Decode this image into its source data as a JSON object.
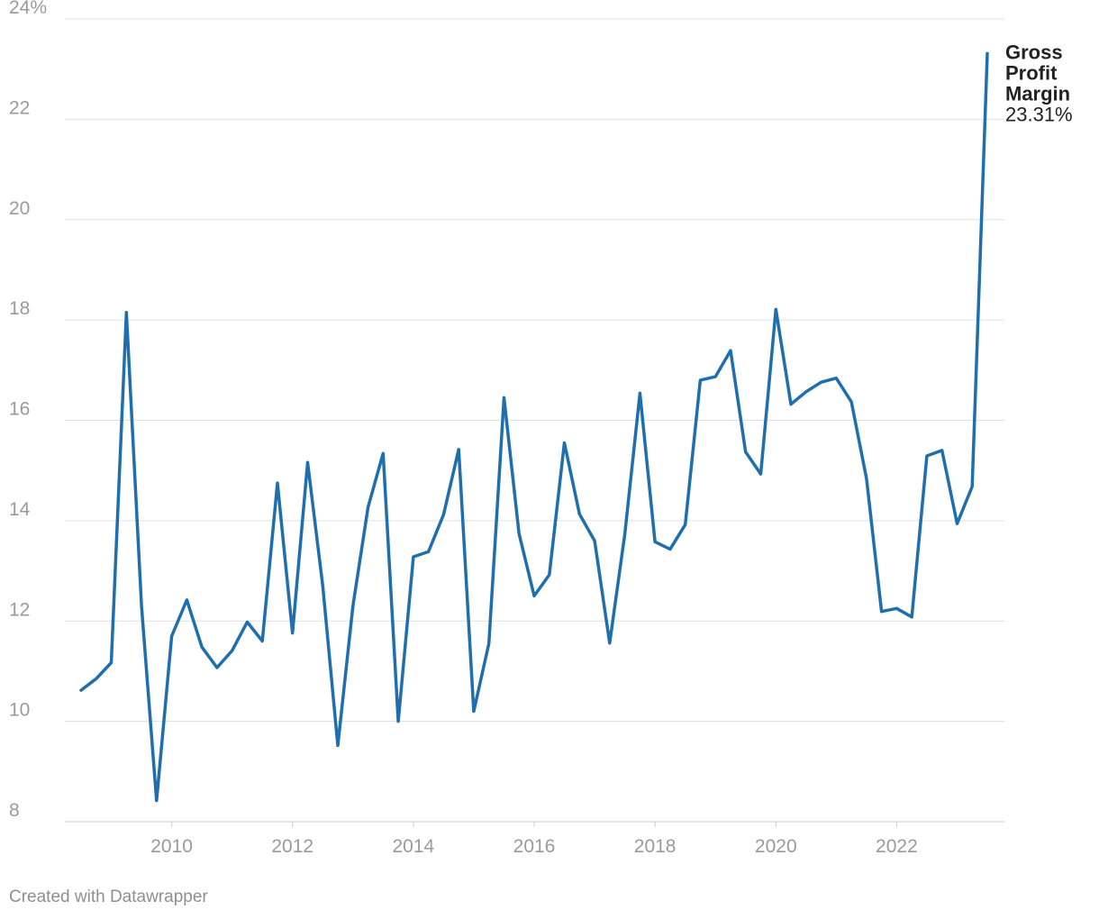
{
  "chart_data": {
    "type": "line",
    "series": [
      {
        "name": "Gross Profit Margin",
        "end_value_label": "23.31%",
        "color": "#1f6fae",
        "values": [
          10.62,
          10.85,
          11.17,
          18.15,
          12.3,
          8.42,
          11.7,
          12.42,
          11.48,
          11.07,
          11.41,
          11.98,
          11.6,
          14.75,
          11.76,
          15.16,
          12.7,
          9.52,
          12.3,
          14.27,
          15.34,
          10.0,
          13.28,
          13.38,
          14.12,
          15.42,
          10.2,
          11.55,
          16.45,
          13.74,
          12.5,
          12.92,
          15.55,
          14.13,
          13.6,
          11.56,
          13.73,
          16.54,
          13.58,
          13.43,
          13.92,
          16.8,
          16.87,
          17.39,
          15.37,
          14.93,
          18.21,
          16.32,
          16.57,
          16.76,
          16.84,
          16.37,
          14.84,
          12.19,
          12.25,
          12.08,
          15.29,
          15.4,
          13.94,
          14.68,
          23.31
        ]
      }
    ],
    "x_start": 2008.5,
    "x_step": 0.25,
    "xlim": [
      2008.5,
      2023.5
    ],
    "x_ticks": [
      "2010",
      "2012",
      "2014",
      "2016",
      "2018",
      "2020",
      "2022"
    ],
    "y_ticks": [
      "24%",
      "22",
      "20",
      "18",
      "16",
      "14",
      "12",
      "10",
      "8"
    ],
    "ylim": [
      8,
      24
    ],
    "title": "",
    "xlabel": "",
    "ylabel": "",
    "grid": true,
    "axis_color": "#cccccc",
    "grid_color": "#e0e0e0"
  },
  "footer": {
    "credit": "Created with Datawrapper"
  }
}
